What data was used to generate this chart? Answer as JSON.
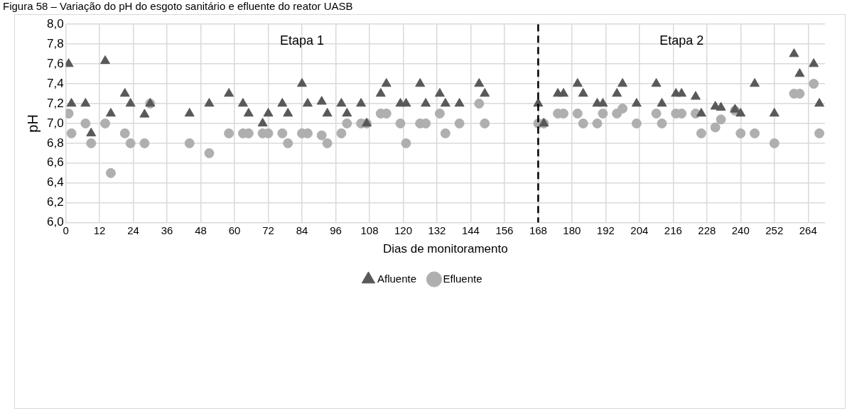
{
  "chart_data": {
    "type": "scatter",
    "title": "Figura 58 – Variação do pH do esgoto sanitário e efluente do reator UASB",
    "xlabel": "Dias de monitoramento",
    "ylabel": "pH",
    "xlim": [
      0,
      270
    ],
    "xticks": [
      0,
      12,
      24,
      36,
      48,
      60,
      72,
      84,
      96,
      108,
      120,
      132,
      144,
      156,
      168,
      180,
      192,
      204,
      216,
      228,
      240,
      252,
      264
    ],
    "ylim": [
      6,
      8
    ],
    "yticks": [
      {
        "value": 6,
        "label": "6,0"
      },
      {
        "value": 6.2,
        "label": "6,2"
      },
      {
        "value": 6.4,
        "label": "6,4"
      },
      {
        "value": 6.6,
        "label": "6,6"
      },
      {
        "value": 6.8,
        "label": "6,8"
      },
      {
        "value": 7,
        "label": "7,0"
      },
      {
        "value": 7.2,
        "label": "7,2"
      },
      {
        "value": 7.4,
        "label": "7,4"
      },
      {
        "value": 7.6,
        "label": "7,6"
      },
      {
        "value": 7.8,
        "label": "7,8"
      },
      {
        "value": 8,
        "label": "8,0"
      }
    ],
    "grid": true,
    "legend": "bottom",
    "ref_lines": [
      {
        "axis": "x",
        "value": 168,
        "color": "#000000",
        "line_style": "dashed"
      }
    ],
    "annotations": [
      "Etapa 1",
      "Etapa 2"
    ],
    "series": [
      {
        "name": "Afluente",
        "color": "#595959",
        "marker": "triangle",
        "x": [
          1,
          2,
          7,
          9,
          14,
          16,
          21,
          23,
          28,
          30,
          44,
          51,
          58,
          63,
          65,
          70,
          72,
          77,
          79,
          84,
          86,
          91,
          93,
          98,
          100,
          105,
          107,
          112,
          114,
          119,
          121,
          126,
          128,
          133,
          135,
          140,
          147,
          149,
          168,
          170,
          175,
          177,
          182,
          184,
          189,
          191,
          196,
          198,
          203,
          210,
          212,
          217,
          219,
          224,
          226,
          231,
          233,
          238,
          240,
          245,
          252,
          259,
          261,
          266,
          268
        ],
        "values": [
          7.6,
          7.2,
          7.2,
          6.9,
          7.63,
          7.1,
          7.3,
          7.2,
          7.09,
          7.2,
          7.1,
          7.2,
          7.3,
          7.2,
          7.1,
          7.0,
          7.1,
          7.2,
          7.1,
          7.4,
          7.2,
          7.22,
          7.1,
          7.2,
          7.1,
          7.2,
          7.0,
          7.3,
          7.4,
          7.2,
          7.2,
          7.4,
          7.2,
          7.3,
          7.2,
          7.2,
          7.4,
          7.3,
          7.2,
          7.0,
          7.3,
          7.3,
          7.4,
          7.3,
          7.2,
          7.2,
          7.3,
          7.4,
          7.2,
          7.4,
          7.2,
          7.3,
          7.3,
          7.27,
          7.1,
          7.17,
          7.16,
          7.14,
          7.1,
          7.4,
          7.1,
          7.7,
          7.5,
          7.6,
          7.2
        ]
      },
      {
        "name": "Efluente",
        "color": "#afafaf",
        "marker": "circle",
        "x": [
          1,
          2,
          7,
          9,
          14,
          16,
          21,
          23,
          28,
          30,
          44,
          51,
          58,
          63,
          65,
          70,
          72,
          77,
          79,
          84,
          86,
          91,
          93,
          98,
          100,
          105,
          107,
          112,
          114,
          119,
          121,
          126,
          128,
          133,
          135,
          140,
          147,
          149,
          168,
          170,
          175,
          177,
          182,
          184,
          189,
          191,
          196,
          198,
          203,
          210,
          212,
          217,
          219,
          224,
          226,
          231,
          233,
          238,
          240,
          245,
          252,
          259,
          261,
          266,
          268
        ],
        "values": [
          7.1,
          6.9,
          7.0,
          6.8,
          7.0,
          6.5,
          6.9,
          6.8,
          6.8,
          7.2,
          6.8,
          6.7,
          6.9,
          6.9,
          6.9,
          6.9,
          6.9,
          6.9,
          6.8,
          6.9,
          6.9,
          6.88,
          6.8,
          6.9,
          7.0,
          7.0,
          7.0,
          7.1,
          7.1,
          7.0,
          6.8,
          7.0,
          7.0,
          7.1,
          6.9,
          7.0,
          7.2,
          7.0,
          7.0,
          7.0,
          7.1,
          7.1,
          7.1,
          7.0,
          7.0,
          7.1,
          7.1,
          7.15,
          7.0,
          7.1,
          7.0,
          7.1,
          7.1,
          7.1,
          6.9,
          6.96,
          7.04,
          7.13,
          6.9,
          6.9,
          6.8,
          7.3,
          7.3,
          7.4,
          6.9
        ]
      }
    ]
  }
}
